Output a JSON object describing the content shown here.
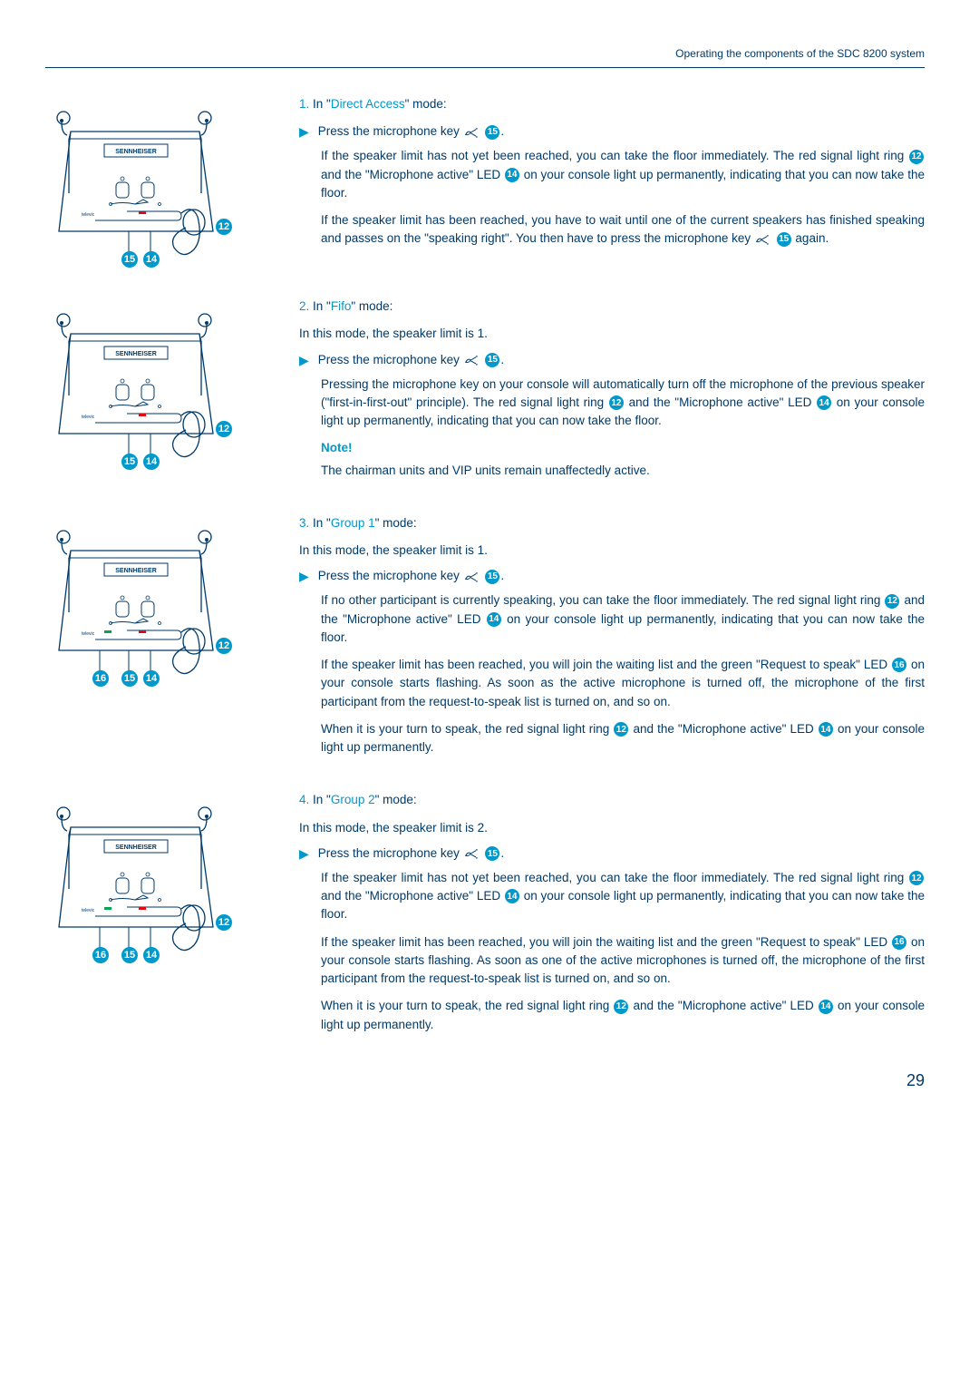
{
  "header": "Operating the components of the SDC 8200 system",
  "pageNumber": "29",
  "colors": {
    "text": "#003a6a",
    "accent": "#0099cc",
    "white": "#ffffff"
  },
  "sections": [
    {
      "num": "1.",
      "modePrefix": "In \"",
      "mode": "Direct Access",
      "modeSuffix": "\" mode:",
      "diagram": {
        "callouts": [
          "12",
          "14",
          "15"
        ],
        "hasGreenLed": false
      },
      "press": {
        "pre": "Press the microphone key ",
        "ref": "15",
        "post": "."
      },
      "paras": [
        {
          "segs": [
            {
              "t": "If the speaker limit has not yet been reached, you can take the floor immediately. The red signal light ring "
            },
            {
              "c": "12"
            },
            {
              "t": " and the \"Microphone active\" LED "
            },
            {
              "c": "14"
            },
            {
              "t": " on your console light up permanently, indicating that you can now take the floor."
            }
          ]
        },
        {
          "segs": [
            {
              "t": "If the speaker limit has been reached, you have to wait until one of the current speakers has finished speaking and passes on the \"speaking right\". You then have to press the microphone key "
            },
            {
              "mic": true
            },
            {
              "t": " "
            },
            {
              "c": "15"
            },
            {
              "t": " again."
            }
          ]
        }
      ]
    },
    {
      "num": "2.",
      "modePrefix": "In \"",
      "mode": "Fifo",
      "modeSuffix": "\" mode:",
      "diagram": {
        "callouts": [
          "12",
          "14",
          "15"
        ],
        "hasGreenLed": false
      },
      "intro": "In this mode, the speaker limit is 1.",
      "press": {
        "pre": "Press the microphone key ",
        "ref": "15",
        "post": "."
      },
      "paras": [
        {
          "segs": [
            {
              "t": "Pressing the microphone key on your console will automatically turn off the microphone of the previous speaker (\"first-in-first-out\" principle). The red signal light ring "
            },
            {
              "c": "12"
            },
            {
              "t": " and the \"Microphone active\" LED "
            },
            {
              "c": "14"
            },
            {
              "t": " on your console light up permanently, indicating that you can now take the floor."
            }
          ]
        }
      ],
      "note": {
        "head": "Note!",
        "body": "The chairman units and VIP units remain unaffectedly active."
      }
    },
    {
      "num": "3.",
      "modePrefix": "In \"",
      "mode": "Group 1",
      "modeSuffix": "\" mode:",
      "diagram": {
        "callouts": [
          "12",
          "14",
          "15",
          "16"
        ],
        "hasGreenLed": true
      },
      "intro": "In this mode, the speaker limit is 1.",
      "press": {
        "pre": "Press the microphone key ",
        "ref": "15",
        "post": "."
      },
      "paras": [
        {
          "segs": [
            {
              "t": "If no other participant is currently speaking, you can take the floor immediately. The red signal light ring "
            },
            {
              "c": "12"
            },
            {
              "t": " and the \"Microphone active\" LED "
            },
            {
              "c": "14"
            },
            {
              "t": " on your console light up permanently, indicating that you can now take the floor."
            }
          ]
        },
        {
          "segs": [
            {
              "t": "If the speaker limit has been reached, you will join the waiting list and the green \"Request to speak\" LED "
            },
            {
              "c": "16"
            },
            {
              "t": " on your console starts flashing. As soon as the active microphone is turned off, the microphone of the first participant from the request-to-speak list is turned on, and so on."
            }
          ]
        },
        {
          "segs": [
            {
              "t": "When it is your turn to speak, the red signal light ring "
            },
            {
              "c": "12"
            },
            {
              "t": " and the \"Microphone active\" LED "
            },
            {
              "c": "14"
            },
            {
              "t": " on your console light up permanently."
            }
          ]
        }
      ]
    },
    {
      "num": "4.",
      "modePrefix": "In \"",
      "mode": "Group 2",
      "modeSuffix": "\" mode:",
      "diagram": {
        "callouts": [
          "12",
          "14",
          "15",
          "16"
        ],
        "hasGreenLed": true
      },
      "intro": "In this mode, the speaker limit is 2.",
      "press": {
        "pre": "Press the microphone key ",
        "ref": "15",
        "post": "."
      },
      "paras": [
        {
          "segs": [
            {
              "t": "If the speaker limit has not yet been reached, you can take the floor immediately. The red signal light ring "
            },
            {
              "c": "12"
            },
            {
              "t": " and the \"Microphone active\" LED "
            },
            {
              "c": "14"
            },
            {
              "t": " on your console light up permanently, indicating that you can now take the floor."
            }
          ]
        },
        {
          "segs": [
            {
              "t": "If the speaker limit has been reached, you will join the waiting list and the green \"Request to speak\" LED "
            },
            {
              "c": "16"
            },
            {
              "t": " on your console starts flashing. As soon as one of the active microphones is turned off, the microphone of the first participant from the request-to-speak list is turned on, and so on."
            }
          ]
        },
        {
          "segs": [
            {
              "t": "When it is your turn to speak, the red signal light ring "
            },
            {
              "c": "12"
            },
            {
              "t": " and the \"Microphone active\" LED "
            },
            {
              "c": "14"
            },
            {
              "t": " on your console light up permanently."
            }
          ]
        }
      ]
    }
  ]
}
